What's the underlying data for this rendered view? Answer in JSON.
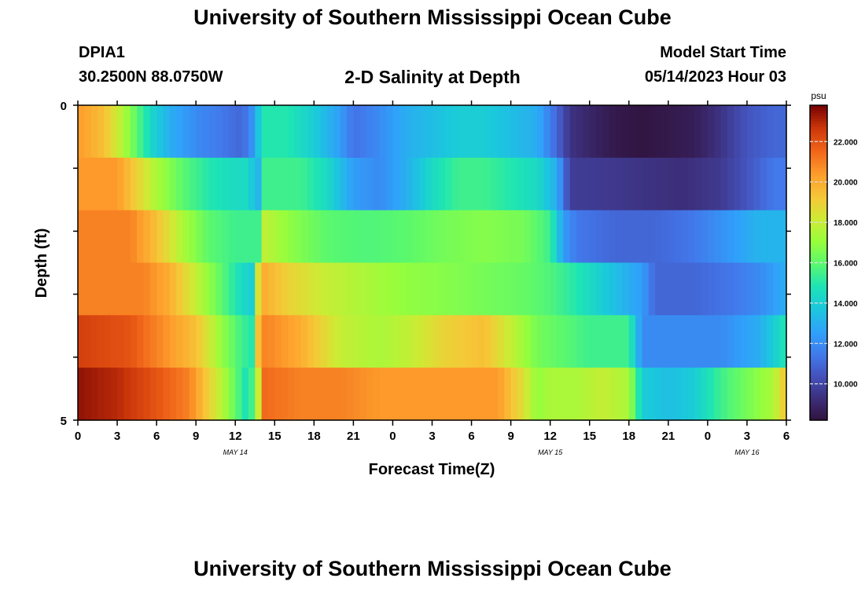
{
  "header": {
    "title": "University of Southern Mississippi Ocean Cube",
    "station": "DPIA1",
    "coords": "30.2500N  88.0750W",
    "plot_title": "2-D Salinity at Depth",
    "model_start_label": "Model Start Time",
    "model_start_value": "05/14/2023 Hour 03"
  },
  "footer": {
    "title": "University of Southern Mississippi Ocean Cube"
  },
  "chart_data": {
    "type": "heatmap",
    "title": "2-D Salinity at Depth",
    "xlabel": "Forecast Time(Z)",
    "ylabel": "Depth (ft)",
    "x_tick_labels": [
      "0",
      "3",
      "6",
      "9",
      "12",
      "15",
      "18",
      "21",
      "0",
      "3",
      "6",
      "9",
      "12",
      "15",
      "18",
      "21",
      "0",
      "3",
      "6"
    ],
    "x_range_hours": [
      0,
      54
    ],
    "y_tick_labels": [
      "0",
      "5"
    ],
    "y_range_ft": [
      0,
      5
    ],
    "date_labels": [
      {
        "text": "MAY 14",
        "hour": 12
      },
      {
        "text": "MAY 15",
        "hour": 36
      },
      {
        "text": "MAY 16",
        "hour": 51
      }
    ],
    "colorbar": {
      "unit": "psu",
      "min": 8.2,
      "max": 23.8,
      "tick_labels": [
        "10.000",
        "12.000",
        "14.000",
        "16.000",
        "18.000",
        "20.000",
        "22.000"
      ],
      "tick_values": [
        10,
        12,
        14,
        16,
        18,
        20,
        22
      ]
    },
    "rows": [
      {
        "depth_ft": 0,
        "hours": [
          0,
          2,
          3.5,
          4.5,
          5.5,
          7,
          9,
          11,
          12.5,
          13.5,
          14,
          16,
          18,
          20,
          21,
          23,
          25,
          27,
          29,
          31,
          33,
          35,
          36.5,
          37.5,
          39,
          41,
          43,
          45,
          47,
          49,
          51,
          53,
          54
        ],
        "values": [
          20.5,
          19.5,
          17.5,
          16,
          14.5,
          13,
          12,
          11.5,
          11,
          12.5,
          15,
          15,
          14,
          12.5,
          11.3,
          12,
          13,
          13.5,
          14,
          14,
          13.5,
          13,
          11,
          9.5,
          9,
          8.5,
          8.3,
          8.5,
          8.7,
          9.5,
          10.5,
          11,
          11
        ]
      },
      {
        "depth_ft": 1,
        "hours": [
          0,
          3,
          4.5,
          6,
          8,
          10,
          12,
          13.2,
          13.5,
          14,
          17,
          19,
          21,
          23,
          25,
          27,
          29,
          31,
          33,
          35,
          36.5,
          37.5,
          40,
          43,
          46,
          49,
          51,
          53,
          54
        ],
        "values": [
          20.5,
          20.5,
          19,
          17.5,
          16,
          15,
          14.5,
          14.5,
          11,
          15.5,
          15.5,
          14.5,
          12.5,
          12,
          13,
          14.5,
          15.5,
          15.5,
          15,
          14.5,
          13,
          9.8,
          9.7,
          9.5,
          9.3,
          9.7,
          10.5,
          11.5,
          11.5
        ]
      },
      {
        "depth_ft": 2,
        "hours": [
          0,
          4,
          6,
          8,
          10,
          12,
          13.3,
          13.6,
          14,
          16,
          19,
          22,
          25,
          28,
          31,
          34,
          36,
          37,
          38,
          41,
          44,
          47,
          50,
          52,
          54
        ],
        "values": [
          21,
          21,
          19.5,
          17.5,
          16,
          15.5,
          15.5,
          14,
          18,
          17,
          16,
          15.8,
          16,
          16.5,
          16.8,
          16.5,
          15.5,
          12.5,
          11.5,
          11,
          11,
          11.5,
          12.5,
          13.2,
          13.2
        ]
      },
      {
        "depth_ft": 3,
        "hours": [
          0,
          5,
          7,
          9,
          11,
          12.5,
          13.3,
          13.8,
          14.2,
          16,
          19,
          22,
          25,
          28,
          31,
          34,
          36,
          38,
          41,
          43,
          44,
          47,
          50,
          52,
          54
        ],
        "values": [
          21,
          21,
          20,
          18,
          16,
          14.5,
          14,
          19,
          20,
          19,
          18,
          17.5,
          17,
          16.8,
          16.5,
          16.2,
          15.8,
          15,
          13.5,
          12.5,
          11,
          11,
          11.5,
          12,
          13
        ]
      },
      {
        "depth_ft": 4,
        "hours": [
          0,
          4,
          7,
          9,
          11,
          12.5,
          13.3,
          13.8,
          14.3,
          17,
          20,
          23,
          25.5,
          28,
          31,
          33,
          35,
          37,
          39,
          42,
          43,
          46,
          49,
          52,
          54
        ],
        "values": [
          22.5,
          22,
          20.5,
          19.5,
          17,
          15.5,
          15,
          20,
          21,
          20,
          18,
          17.5,
          18,
          19,
          19.5,
          18,
          16.5,
          16,
          15.5,
          15.5,
          12,
          12,
          12,
          13,
          15
        ]
      },
      {
        "depth_ft": 5,
        "hours": [
          0,
          3,
          6,
          8.5,
          10,
          11.5,
          13,
          13.6,
          14.2,
          17,
          20,
          23,
          26,
          29,
          32,
          34,
          35,
          36,
          38,
          40,
          42,
          43,
          45,
          47,
          49,
          51,
          53,
          54
        ],
        "values": [
          23.5,
          23,
          22,
          21,
          19,
          17,
          14.5,
          17,
          21.5,
          21,
          21,
          20.5,
          20.5,
          20.5,
          20.5,
          18.5,
          17,
          17.5,
          17.5,
          18,
          17.5,
          14,
          13.5,
          14,
          15.5,
          16.5,
          17.5,
          19.5
        ]
      }
    ]
  }
}
